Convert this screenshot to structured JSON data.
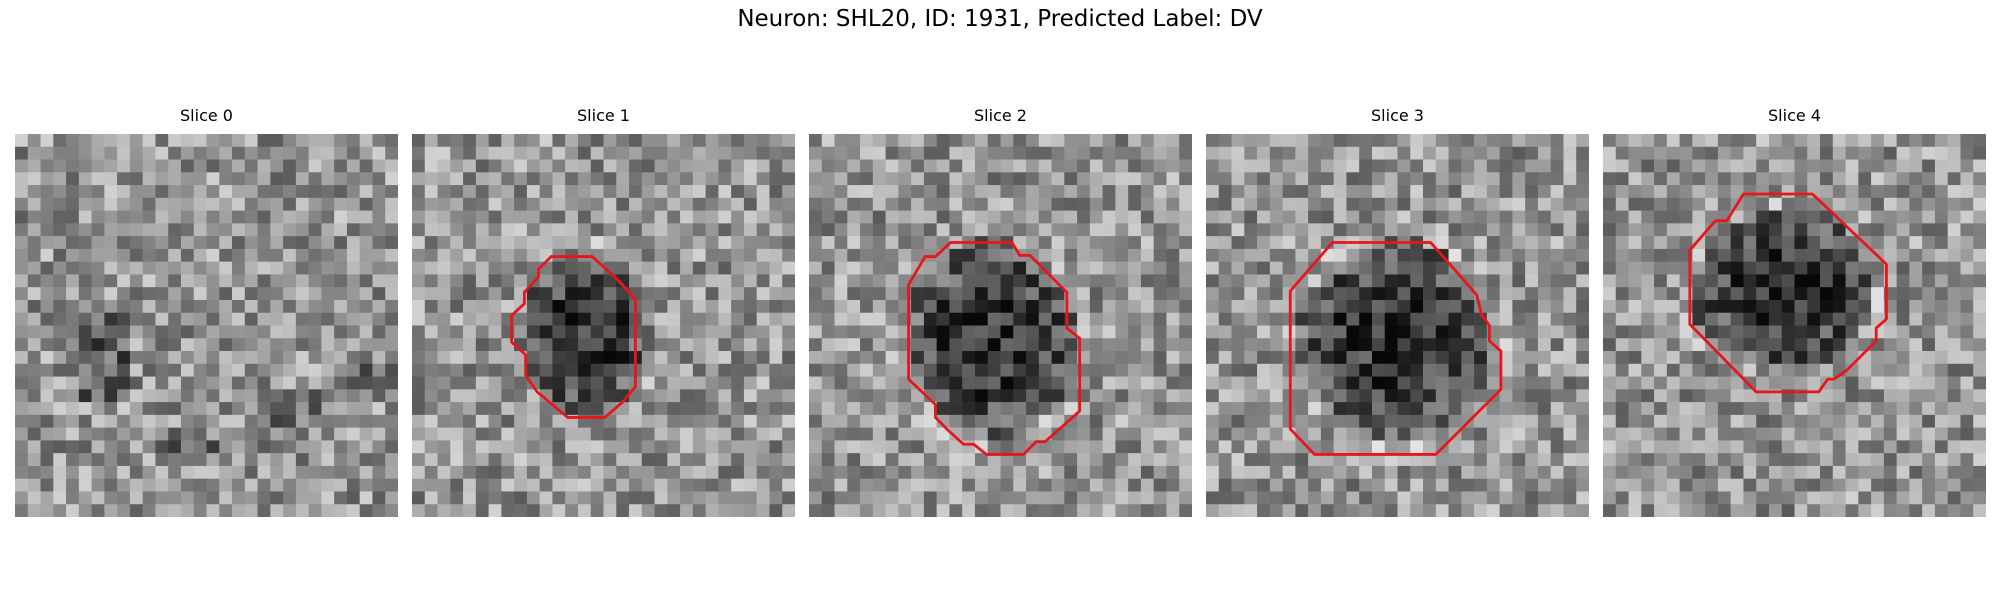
{
  "figure": {
    "title": "Neuron: SHL20, ID: 1931, Predicted Label: DV"
  },
  "panels": [
    {
      "title": "Slice 0",
      "has_contour": false,
      "contour_color": "#e8161b"
    },
    {
      "title": "Slice 1",
      "has_contour": true,
      "contour_color": "#e8161b"
    },
    {
      "title": "Slice 2",
      "has_contour": true,
      "contour_color": "#e8161b"
    },
    {
      "title": "Slice 3",
      "has_contour": true,
      "contour_color": "#e8161b"
    },
    {
      "title": "Slice 4",
      "has_contour": true,
      "contour_color": "#e8161b"
    }
  ]
}
